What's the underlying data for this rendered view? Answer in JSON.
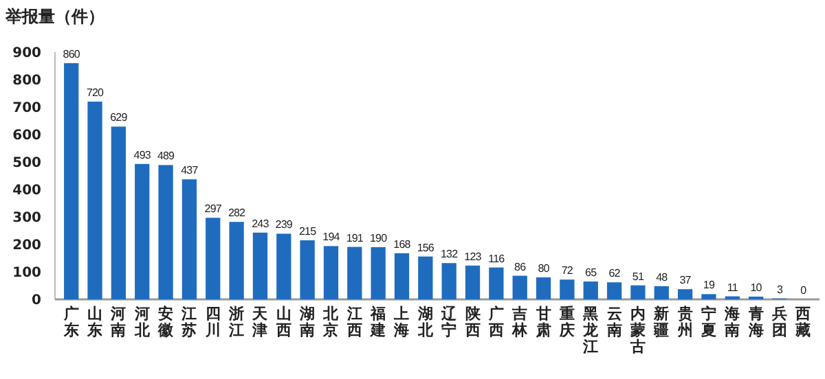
{
  "chart_data": {
    "type": "bar",
    "title": "举报量（件）",
    "categories": [
      "广东",
      "山东",
      "河南",
      "河北",
      "安徽",
      "江苏",
      "四川",
      "浙江",
      "天津",
      "山西",
      "湖南",
      "北京",
      "江西",
      "福建",
      "上海",
      "湖北",
      "辽宁",
      "陕西",
      "广西",
      "吉林",
      "甘肃",
      "重庆",
      "黑龙江",
      "云南",
      "内蒙古",
      "新疆",
      "贵州",
      "宁夏",
      "海南",
      "青海",
      "兵团",
      "西藏"
    ],
    "values": [
      860,
      720,
      629,
      493,
      489,
      437,
      297,
      282,
      243,
      239,
      215,
      194,
      191,
      190,
      168,
      156,
      132,
      123,
      116,
      86,
      80,
      72,
      65,
      62,
      51,
      48,
      37,
      19,
      11,
      10,
      3,
      0
    ],
    "color": "#1f6cbf",
    "ylim": [
      0,
      900
    ],
    "yticks": [
      0,
      100,
      200,
      300,
      400,
      500,
      600,
      700,
      800,
      900
    ],
    "data_labels": true,
    "grid": false
  }
}
